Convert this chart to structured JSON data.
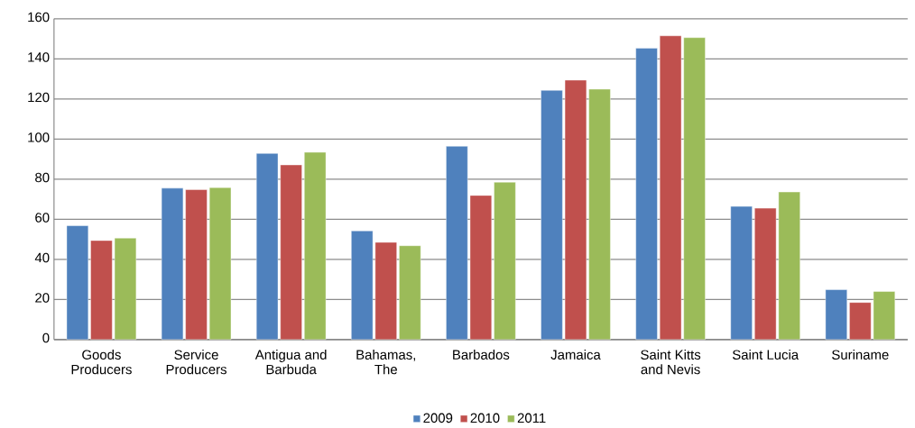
{
  "chart_data": {
    "type": "bar",
    "categories": [
      "Goods\nProducers",
      "Service\nProducers",
      "Antigua and\nBarbuda",
      "Bahamas,\nThe",
      "Barbados",
      "Jamaica",
      "Saint Kitts\nand Nevis",
      "Saint Lucia",
      "Suriname"
    ],
    "series": [
      {
        "name": "2009",
        "color": "#4f81bd",
        "values": [
          56.8,
          75.5,
          92.8,
          54.2,
          96.4,
          124.3,
          145.3,
          66.4,
          24.9
        ]
      },
      {
        "name": "2010",
        "color": "#c0504d",
        "values": [
          49.4,
          74.8,
          87.1,
          48.5,
          71.9,
          129.4,
          151.5,
          65.5,
          18.5
        ]
      },
      {
        "name": "2011",
        "color": "#9bbb59",
        "values": [
          50.6,
          75.8,
          93.4,
          46.8,
          78.5,
          124.9,
          150.6,
          73.6,
          24.0
        ]
      }
    ],
    "ylim": [
      0,
      160
    ],
    "yticks": [
      0,
      20,
      40,
      60,
      80,
      100,
      120,
      140,
      160
    ],
    "grid": "y",
    "legend": "bottom"
  }
}
